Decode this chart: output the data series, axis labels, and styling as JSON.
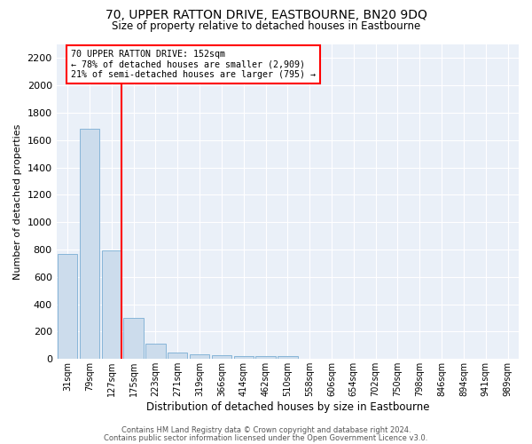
{
  "title": "70, UPPER RATTON DRIVE, EASTBOURNE, BN20 9DQ",
  "subtitle": "Size of property relative to detached houses in Eastbourne",
  "xlabel": "Distribution of detached houses by size in Eastbourne",
  "ylabel": "Number of detached properties",
  "bar_color": "#ccdcec",
  "bar_edge_color": "#7aadd4",
  "background_color": "#eaf0f8",
  "grid_color": "#ffffff",
  "categories": [
    "31sqm",
    "79sqm",
    "127sqm",
    "175sqm",
    "223sqm",
    "271sqm",
    "319sqm",
    "366sqm",
    "414sqm",
    "462sqm",
    "510sqm",
    "558sqm",
    "606sqm",
    "654sqm",
    "702sqm",
    "750sqm",
    "798sqm",
    "846sqm",
    "894sqm",
    "941sqm",
    "989sqm"
  ],
  "values": [
    770,
    1685,
    795,
    300,
    110,
    45,
    33,
    27,
    22,
    20,
    20,
    0,
    0,
    0,
    0,
    0,
    0,
    0,
    0,
    0,
    0
  ],
  "ylim": [
    0,
    2300
  ],
  "yticks": [
    0,
    200,
    400,
    600,
    800,
    1000,
    1200,
    1400,
    1600,
    1800,
    2000,
    2200
  ],
  "red_line_x": 2.45,
  "annotation_text": "70 UPPER RATTON DRIVE: 152sqm\n← 78% of detached houses are smaller (2,909)\n21% of semi-detached houses are larger (795) →",
  "footer1": "Contains HM Land Registry data © Crown copyright and database right 2024.",
  "footer2": "Contains public sector information licensed under the Open Government Licence v3.0."
}
